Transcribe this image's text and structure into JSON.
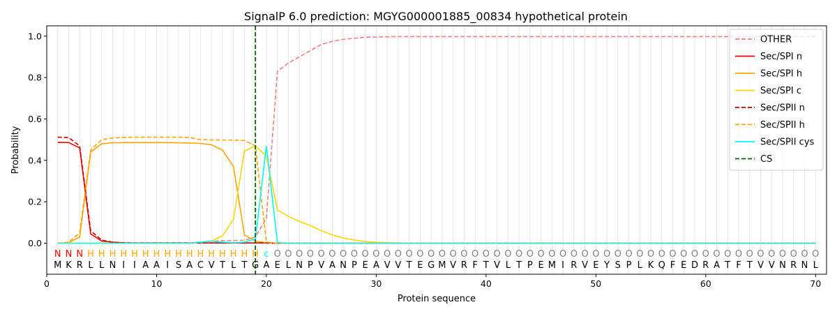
{
  "chart_data": {
    "type": "line",
    "title": "SignalP 6.0 prediction: MGYG000001885_00834 hypothetical protein",
    "xlabel": "Protein sequence",
    "ylabel": "Probability",
    "xlim": [
      0,
      71
    ],
    "ylim": [
      -0.15,
      1.05
    ],
    "xticks": [
      0,
      10,
      20,
      30,
      40,
      50,
      60,
      70
    ],
    "yticks": [
      0.0,
      0.2,
      0.4,
      0.6,
      0.8,
      1.0
    ],
    "xtick_labels": [
      "0",
      "10",
      "20",
      "30",
      "40",
      "50",
      "60",
      "70"
    ],
    "ytick_labels": [
      "0.0",
      "0.2",
      "0.4",
      "0.6",
      "0.8",
      "1.0"
    ],
    "grid": "vertical lines at each residue",
    "legend_position": "top-right",
    "cleavage_site": {
      "name": "CS",
      "x": 19,
      "color": "#006400",
      "style": "dashed"
    },
    "sequence": [
      "M",
      "K",
      "R",
      "L",
      "L",
      "N",
      "I",
      "I",
      "A",
      "A",
      "I",
      "S",
      "A",
      "C",
      "V",
      "T",
      "L",
      "T",
      "G",
      "A",
      "E",
      "L",
      "N",
      "P",
      "V",
      "A",
      "N",
      "P",
      "E",
      "A",
      "V",
      "V",
      "T",
      "E",
      "G",
      "M",
      "V",
      "R",
      "F",
      "T",
      "V",
      "L",
      "T",
      "P",
      "E",
      "M",
      "I",
      "R",
      "V",
      "E",
      "Y",
      "S",
      "P",
      "L",
      "K",
      "Q",
      "F",
      "E",
      "D",
      "R",
      "A",
      "T",
      "F",
      "T",
      "V",
      "V",
      "N",
      "R",
      "N",
      "L"
    ],
    "region_labels": [
      "N",
      "N",
      "N",
      "H",
      "H",
      "H",
      "H",
      "H",
      "H",
      "H",
      "H",
      "H",
      "H",
      "H",
      "H",
      "H",
      "H",
      "H",
      "H",
      "C",
      "O",
      "O",
      "O",
      "O",
      "O",
      "O",
      "O",
      "O",
      "O",
      "O",
      "O",
      "O",
      "O",
      "O",
      "O",
      "O",
      "O",
      "O",
      "O",
      "O",
      "O",
      "O",
      "O",
      "O",
      "O",
      "O",
      "O",
      "O",
      "O",
      "O",
      "O",
      "O",
      "O",
      "O",
      "O",
      "O",
      "O",
      "O",
      "O",
      "O",
      "O",
      "O",
      "O",
      "O",
      "O",
      "O",
      "O",
      "O",
      "O",
      "O"
    ],
    "region_label_display": [
      "N",
      "N",
      "N",
      "H",
      "H",
      "H",
      "H",
      "H",
      "H",
      "H",
      "H",
      "H",
      "H",
      "H",
      "H",
      "H",
      "H",
      "H",
      "H",
      "c",
      "O",
      "O",
      "O",
      "O",
      "O",
      "O",
      "O",
      "O",
      "O",
      "O",
      "O",
      "O",
      "O",
      "O",
      "O",
      "O",
      "O",
      "O",
      "O",
      "O",
      "O",
      "O",
      "O",
      "O",
      "O",
      "O",
      "O",
      "O",
      "O",
      "O",
      "O",
      "O",
      "O",
      "O",
      "O",
      "O",
      "O",
      "O",
      "O",
      "O",
      "O",
      "O",
      "O",
      "O",
      "O",
      "O",
      "O",
      "O",
      "O",
      "O"
    ],
    "region_colors": {
      "N": "#ff0000",
      "H": "#ffa500",
      "C": "#00ffff",
      "O": "#808080"
    },
    "series": [
      {
        "name": "OTHER",
        "color": "#f08080",
        "dash": "dashed",
        "values": [
          0.0,
          0.0,
          0.0,
          0.0,
          0.0,
          0.0,
          0.0,
          0.0,
          0.0,
          0.0,
          0.0,
          0.0,
          0.0,
          0.005,
          0.01,
          0.012,
          0.013,
          0.014,
          0.03,
          0.12,
          0.83,
          0.87,
          0.9,
          0.93,
          0.96,
          0.975,
          0.985,
          0.99,
          0.995,
          0.996,
          0.997,
          0.998,
          0.998,
          0.998,
          0.998,
          0.998,
          0.998,
          0.998,
          0.998,
          0.998,
          0.998,
          0.998,
          0.998,
          0.998,
          0.998,
          0.998,
          0.998,
          0.998,
          0.998,
          0.998,
          0.998,
          0.998,
          0.998,
          0.998,
          0.998,
          0.998,
          0.998,
          0.998,
          0.998,
          0.998,
          0.998,
          0.998,
          0.998,
          0.998,
          0.998,
          0.998,
          0.998,
          0.998,
          0.998,
          0.998
        ]
      },
      {
        "name": "Sec/SPI n",
        "color": "#ff0000",
        "dash": "solid",
        "values": [
          0.487,
          0.486,
          0.46,
          0.045,
          0.01,
          0.005,
          0.002,
          0.001,
          0.001,
          0.001,
          0.001,
          0.001,
          0.001,
          0.001,
          0.001,
          0.001,
          0.001,
          0.001,
          0.001,
          0.001,
          0.0,
          0.0,
          0.0,
          0.0,
          0.0,
          0.0,
          0.0,
          0.0,
          0.0,
          0.0,
          0.0,
          0.0,
          0.0,
          0.0,
          0.0,
          0.0,
          0.0,
          0.0,
          0.0,
          0.0,
          0.0,
          0.0,
          0.0,
          0.0,
          0.0,
          0.0,
          0.0,
          0.0,
          0.0,
          0.0,
          0.0,
          0.0,
          0.0,
          0.0,
          0.0,
          0.0,
          0.0,
          0.0,
          0.0,
          0.0,
          0.0,
          0.0,
          0.0,
          0.0,
          0.0,
          0.0,
          0.0,
          0.0,
          0.0,
          0.0
        ]
      },
      {
        "name": "Sec/SPI h",
        "color": "#ffa500",
        "dash": "solid",
        "values": [
          0.0,
          0.002,
          0.03,
          0.44,
          0.48,
          0.485,
          0.486,
          0.486,
          0.486,
          0.486,
          0.486,
          0.485,
          0.484,
          0.482,
          0.475,
          0.45,
          0.37,
          0.04,
          0.01,
          0.002,
          0.0,
          0.0,
          0.0,
          0.0,
          0.0,
          0.0,
          0.0,
          0.0,
          0.0,
          0.0,
          0.0,
          0.0,
          0.0,
          0.0,
          0.0,
          0.0,
          0.0,
          0.0,
          0.0,
          0.0,
          0.0,
          0.0,
          0.0,
          0.0,
          0.0,
          0.0,
          0.0,
          0.0,
          0.0,
          0.0,
          0.0,
          0.0,
          0.0,
          0.0,
          0.0,
          0.0,
          0.0,
          0.0,
          0.0,
          0.0,
          0.0,
          0.0,
          0.0,
          0.0,
          0.0,
          0.0,
          0.0,
          0.0,
          0.0,
          0.0
        ]
      },
      {
        "name": "Sec/SPI c",
        "color": "#ffd700",
        "dash": "solid",
        "values": [
          0.0,
          0.0,
          0.0,
          0.0,
          0.0,
          0.0,
          0.0,
          0.0,
          0.0,
          0.0,
          0.0,
          0.0,
          0.0,
          0.002,
          0.01,
          0.035,
          0.115,
          0.445,
          0.47,
          0.42,
          0.16,
          0.13,
          0.105,
          0.085,
          0.06,
          0.04,
          0.025,
          0.015,
          0.008,
          0.004,
          0.002,
          0.001,
          0.0,
          0.0,
          0.0,
          0.0,
          0.0,
          0.0,
          0.0,
          0.0,
          0.0,
          0.0,
          0.0,
          0.0,
          0.0,
          0.0,
          0.0,
          0.0,
          0.0,
          0.0,
          0.0,
          0.0,
          0.0,
          0.0,
          0.0,
          0.0,
          0.0,
          0.0,
          0.0,
          0.0,
          0.0,
          0.0,
          0.0,
          0.0,
          0.0,
          0.0,
          0.0,
          0.0,
          0.0,
          0.0
        ]
      },
      {
        "name": "Sec/SPII n",
        "color": "#cc0000",
        "dash": "dashed",
        "values": [
          0.512,
          0.51,
          0.47,
          0.06,
          0.015,
          0.005,
          0.002,
          0.001,
          0.001,
          0.001,
          0.001,
          0.001,
          0.001,
          0.001,
          0.001,
          0.001,
          0.001,
          0.001,
          0.001,
          0.001,
          0.0,
          0.0,
          0.0,
          0.0,
          0.0,
          0.0,
          0.0,
          0.0,
          0.0,
          0.0,
          0.0,
          0.0,
          0.0,
          0.0,
          0.0,
          0.0,
          0.0,
          0.0,
          0.0,
          0.0,
          0.0,
          0.0,
          0.0,
          0.0,
          0.0,
          0.0,
          0.0,
          0.0,
          0.0,
          0.0,
          0.0,
          0.0,
          0.0,
          0.0,
          0.0,
          0.0,
          0.0,
          0.0,
          0.0,
          0.0,
          0.0,
          0.0,
          0.0,
          0.0,
          0.0,
          0.0,
          0.0,
          0.0,
          0.0,
          0.0
        ]
      },
      {
        "name": "Sec/SPII h",
        "color": "#ffa500",
        "dash": "dashed",
        "values": [
          0.0,
          0.005,
          0.05,
          0.45,
          0.5,
          0.508,
          0.511,
          0.512,
          0.512,
          0.512,
          0.512,
          0.512,
          0.511,
          0.5,
          0.499,
          0.498,
          0.498,
          0.496,
          0.47,
          0.005,
          0.0,
          0.0,
          0.0,
          0.0,
          0.0,
          0.0,
          0.0,
          0.0,
          0.0,
          0.0,
          0.0,
          0.0,
          0.0,
          0.0,
          0.0,
          0.0,
          0.0,
          0.0,
          0.0,
          0.0,
          0.0,
          0.0,
          0.0,
          0.0,
          0.0,
          0.0,
          0.0,
          0.0,
          0.0,
          0.0,
          0.0,
          0.0,
          0.0,
          0.0,
          0.0,
          0.0,
          0.0,
          0.0,
          0.0,
          0.0,
          0.0,
          0.0,
          0.0,
          0.0,
          0.0,
          0.0,
          0.0,
          0.0,
          0.0,
          0.0
        ]
      },
      {
        "name": "Sec/SPII cys",
        "color": "#00ffff",
        "dash": "solid",
        "values": [
          0.0,
          0.0,
          0.0,
          0.0,
          0.0,
          0.0,
          0.0,
          0.0,
          0.0,
          0.0,
          0.0,
          0.0,
          0.0,
          0.005,
          0.01,
          0.005,
          0.002,
          0.005,
          0.02,
          0.47,
          0.003,
          0.0,
          0.0,
          0.0,
          0.0,
          0.0,
          0.0,
          0.0,
          0.0,
          0.0,
          0.0,
          0.0,
          0.0,
          0.0,
          0.0,
          0.0,
          0.0,
          0.0,
          0.0,
          0.0,
          0.0,
          0.0,
          0.0,
          0.0,
          0.0,
          0.0,
          0.0,
          0.0,
          0.0,
          0.0,
          0.0,
          0.0,
          0.0,
          0.0,
          0.0,
          0.0,
          0.0,
          0.0,
          0.0,
          0.0,
          0.0,
          0.0,
          0.0,
          0.0,
          0.0,
          0.0,
          0.0,
          0.0,
          0.0,
          0.0
        ]
      }
    ]
  }
}
